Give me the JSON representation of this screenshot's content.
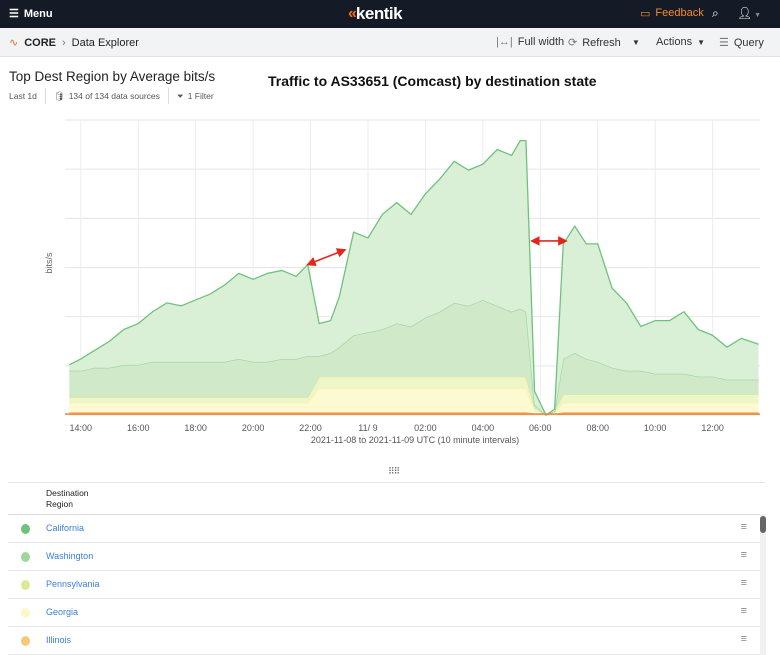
{
  "header": {
    "menu_label": "Menu",
    "brand": "kentik",
    "feedback_label": "Feedback"
  },
  "toolbar": {
    "section": "CORE",
    "page": "Data Explorer",
    "full_width": "Full width",
    "refresh": "Refresh",
    "actions": "Actions",
    "query": "Query"
  },
  "widget": {
    "title": "Top Dest Region by Average bits/s",
    "range": "Last 1d",
    "sources": "134 of 134 data sources",
    "filters": "1 Filter"
  },
  "chart_data": {
    "type": "area",
    "stacked": true,
    "title": "Traffic to AS33651 (Comcast) by destination state",
    "ylabel": "bits/s",
    "xlabel": "2021-11-08 to 2021-11-09 UTC (10 minute intervals)",
    "x_unit": "hours since 2021-11-08 14:00",
    "xlim": [
      -0.55,
      23.65
    ],
    "ylim": [
      0,
      100
    ],
    "grid": true,
    "x_ticks": [
      {
        "x": 0,
        "label": "14:00"
      },
      {
        "x": 2,
        "label": "16:00"
      },
      {
        "x": 4,
        "label": "18:00"
      },
      {
        "x": 6,
        "label": "20:00"
      },
      {
        "x": 8,
        "label": "22:00"
      },
      {
        "x": 10,
        "label": "11/ 9"
      },
      {
        "x": 12,
        "label": "02:00"
      },
      {
        "x": 14,
        "label": "04:00"
      },
      {
        "x": 16,
        "label": "06:00"
      },
      {
        "x": 18,
        "label": "08:00"
      },
      {
        "x": 20,
        "label": "10:00"
      },
      {
        "x": 22,
        "label": "12:00"
      }
    ],
    "x": [
      -0.4,
      0,
      0.5,
      1,
      1.5,
      2,
      2.5,
      3,
      3.5,
      4,
      4.5,
      5,
      5.5,
      6,
      6.5,
      7,
      7.5,
      7.9,
      8.3,
      8.7,
      9,
      9.5,
      10,
      10.5,
      11,
      11.5,
      12,
      12.5,
      13,
      13.5,
      14,
      14.5,
      15,
      15.3,
      15.5,
      15.8,
      16.2,
      16.5,
      16.8,
      17.2,
      17.6,
      18,
      18.5,
      19,
      19.5,
      20,
      20.5,
      21,
      21.5,
      22,
      22.5,
      23,
      23.6
    ],
    "series": [
      {
        "name": "Illinois",
        "color": "#f5c978",
        "values": [
          1,
          1,
          1,
          1,
          1,
          1,
          1,
          1,
          1,
          1,
          1,
          1,
          1,
          1,
          1,
          1,
          1,
          1,
          1,
          1,
          1,
          1,
          1,
          1,
          1,
          1,
          1,
          1,
          1,
          1,
          1,
          1,
          1,
          1,
          1,
          0.5,
          0,
          0.3,
          1,
          1,
          1,
          1,
          1,
          1,
          1,
          1,
          1,
          1,
          1,
          1,
          1,
          1,
          1
        ]
      },
      {
        "name": "Georgia",
        "color": "#fbf7b5",
        "values": [
          3,
          3,
          3,
          3,
          3,
          3,
          3,
          3,
          3,
          3,
          3,
          3,
          3,
          3,
          3,
          3,
          3,
          3,
          8,
          8,
          8,
          8,
          8,
          8,
          8,
          8,
          8,
          8,
          8,
          8,
          8,
          8,
          8,
          8,
          8,
          1,
          0,
          0.5,
          3,
          3,
          3,
          3,
          3,
          3,
          3,
          3,
          3,
          3,
          3,
          3,
          3,
          3,
          3
        ]
      },
      {
        "name": "Pennsylvania",
        "color": "#dcea98",
        "values": [
          2,
          2,
          2,
          2,
          2,
          2,
          2,
          2,
          2,
          2,
          2,
          2,
          2,
          2,
          2,
          2,
          2,
          2,
          4,
          4,
          4,
          4,
          4,
          4,
          4,
          4,
          4,
          4,
          4,
          4,
          4,
          4,
          4,
          4,
          4,
          1,
          0,
          0.5,
          3,
          3,
          3,
          3,
          3,
          3,
          3,
          3,
          3,
          3,
          3,
          3,
          3,
          3,
          3
        ]
      },
      {
        "name": "Washington",
        "color": "#9fd69b",
        "values": [
          9,
          9,
          10,
          10,
          11,
          11,
          12,
          12,
          12,
          12,
          12,
          12,
          13,
          12,
          12,
          13,
          13,
          14,
          7,
          8,
          10,
          14,
          15,
          16,
          18,
          17,
          20,
          22,
          25,
          24,
          26,
          24,
          22,
          23,
          22,
          1,
          0,
          0,
          12,
          14,
          12,
          11,
          9,
          8,
          8,
          7,
          7,
          7,
          6,
          6,
          5,
          5,
          5
        ]
      },
      {
        "name": "California",
        "color": "#6fc27c",
        "values": [
          2,
          4,
          6,
          9,
          12,
          14,
          17,
          20,
          19,
          21,
          23,
          26,
          29,
          28,
          30,
          30,
          28,
          31,
          11,
          11,
          17,
          35,
          32,
          39,
          41,
          38,
          42,
          45,
          48,
          46,
          46,
          53,
          53,
          57,
          58,
          4.5,
          0,
          0.7,
          39,
          43,
          39,
          40,
          27,
          23,
          15,
          18,
          18,
          21,
          16,
          14,
          11,
          14,
          12
        ]
      }
    ],
    "annotations": [
      {
        "type": "double-arrow",
        "color": "#e3261c",
        "from": [
          7.9,
          51
        ],
        "to": [
          9.2,
          56
        ]
      },
      {
        "type": "double-arrow",
        "color": "#e3261c",
        "from": [
          15.7,
          59
        ],
        "to": [
          16.9,
          59
        ]
      }
    ]
  },
  "table": {
    "header": "Destination Region",
    "rows": [
      {
        "label": "California",
        "color": "#6fc27c"
      },
      {
        "label": "Washington",
        "color": "#9fd69b"
      },
      {
        "label": "Pennsylvania",
        "color": "#dcea98"
      },
      {
        "label": "Georgia",
        "color": "#fbf7c8"
      },
      {
        "label": "Illinois",
        "color": "#f5c978"
      }
    ]
  }
}
